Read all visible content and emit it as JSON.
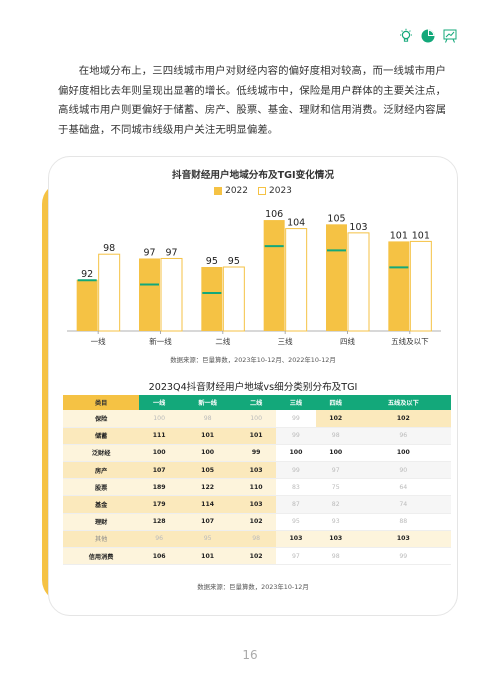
{
  "header": {
    "icons": [
      "lightbulb-icon",
      "pie-chart-icon",
      "presentation-chart-icon"
    ],
    "accent": "#13a87a"
  },
  "intro": {
    "text": "在地域分布上，三四线城市用户对财经内容的偏好度相对较高，而一线城市用户偏好度相比去年则呈现出显著的增长。低线城市中，保险是用户群体的主要关注点，高线城市用户则更偏好于储蓄、房产、股票、基金、理财和信用消费。泛财经内容属于基础盘，不同城市线级用户关注无明显偏差。"
  },
  "chart_data": {
    "type": "bar",
    "title": "抖音财经用户地域分布及TGI变化情况",
    "categories": [
      "一线",
      "新一线",
      "二线",
      "三线",
      "四线",
      "五线及以下"
    ],
    "series": [
      {
        "name": "2022",
        "values": [
          92,
          97,
          95,
          106,
          105,
          101
        ],
        "color": "#f5c244"
      },
      {
        "name": "2023",
        "values": [
          98,
          97,
          95,
          104,
          103,
          101
        ],
        "color": "#ffffff"
      }
    ],
    "ylim": [
      80,
      110
    ],
    "marker_color": "#13a87a",
    "source_note": "数据来源：巨量算数，2023年10-12月、2022年10-12月"
  },
  "table": {
    "title": "2023Q4抖音财经用户地域vs细分类别分布及TGI",
    "corner": "类目",
    "columns": [
      "一线",
      "新一线",
      "二线",
      "三线",
      "四线",
      "五线及以下"
    ],
    "rows": [
      {
        "category": "保险",
        "values": [
          "100",
          "98",
          "100",
          "99",
          "102",
          "102"
        ]
      },
      {
        "category": "储蓄",
        "values": [
          "111",
          "101",
          "101",
          "99",
          "98",
          "96"
        ]
      },
      {
        "category": "泛财经",
        "values": [
          "100",
          "100",
          "99",
          "100",
          "100",
          "100"
        ]
      },
      {
        "category": "房产",
        "values": [
          "107",
          "105",
          "103",
          "99",
          "97",
          "90"
        ]
      },
      {
        "category": "股票",
        "values": [
          "189",
          "122",
          "110",
          "83",
          "75",
          "64"
        ]
      },
      {
        "category": "基金",
        "values": [
          "179",
          "114",
          "103",
          "87",
          "82",
          "74"
        ]
      },
      {
        "category": "理财",
        "values": [
          "128",
          "107",
          "102",
          "95",
          "93",
          "88"
        ]
      },
      {
        "category": "其他",
        "values": [
          "96",
          "95",
          "98",
          "103",
          "103",
          "103"
        ]
      },
      {
        "category": "信用消费",
        "values": [
          "106",
          "101",
          "102",
          "97",
          "98",
          "99"
        ]
      }
    ],
    "source_note": "数据来源：巨量算数，2023年10-12月"
  },
  "page_number": "16"
}
